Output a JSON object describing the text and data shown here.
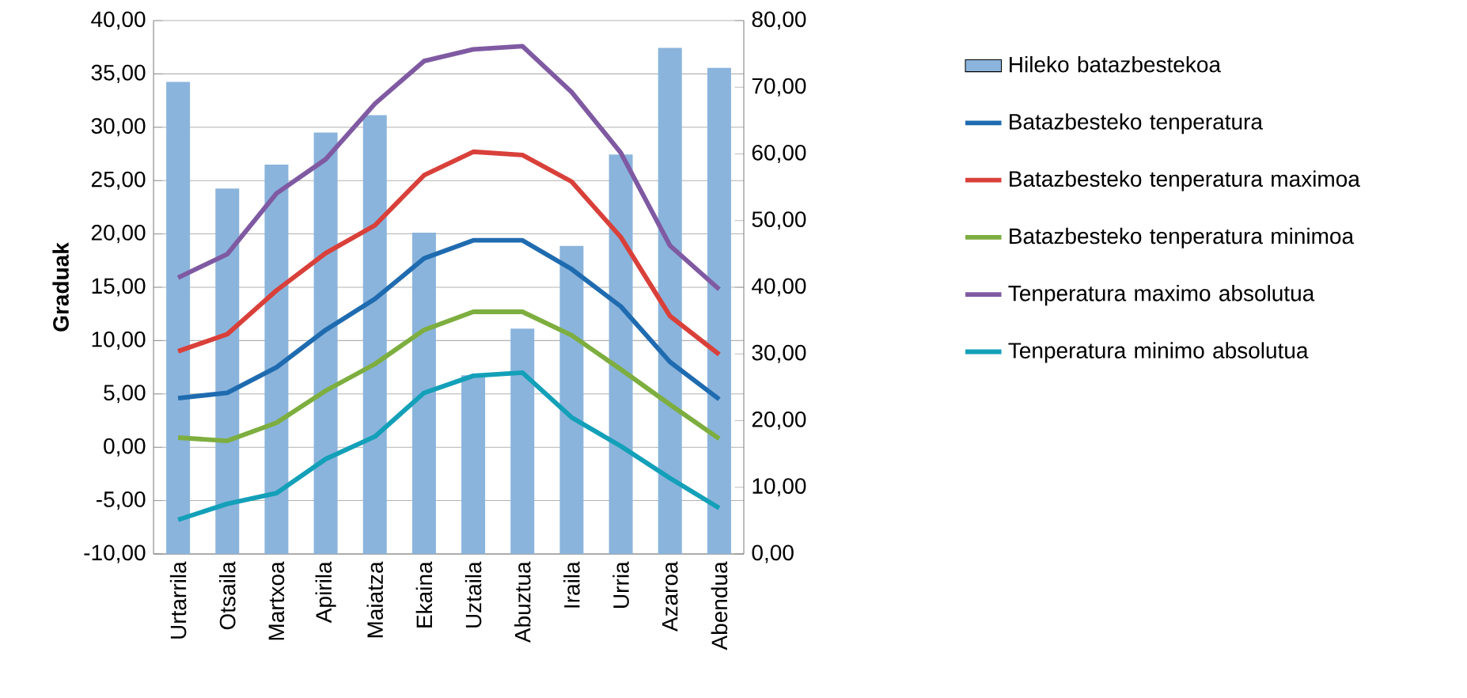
{
  "chart_data": {
    "type": "line",
    "ylabel": "Graduak",
    "categories": [
      "Urtarrila",
      "Otsaila",
      "Martxoa",
      "Apirila",
      "Maiatza",
      "Ekaina",
      "Uztaila",
      "Abuztua",
      "Iraila",
      "Urria",
      "Azaroa",
      "Abendua"
    ],
    "series": [
      {
        "name": "Hileko batazbestekoa",
        "type": "bar",
        "axis": "y2",
        "color": "#8ab4dc",
        "values": [
          70.8,
          54.8,
          58.4,
          63.2,
          65.8,
          48.2,
          26.8,
          33.8,
          46.2,
          59.9,
          75.9,
          72.9
        ]
      },
      {
        "name": "Batazbesteko tenperatura",
        "color": "#1f6bb0",
        "values": [
          4.6,
          5.1,
          7.5,
          11.0,
          13.9,
          17.7,
          19.4,
          19.4,
          16.7,
          13.2,
          8.0,
          4.5
        ]
      },
      {
        "name": "Batazbesteko tenperatura maximoa",
        "color": "#d9403a",
        "values": [
          9.0,
          10.6,
          14.7,
          18.2,
          20.8,
          25.5,
          27.7,
          27.4,
          24.9,
          19.7,
          12.3,
          8.7
        ]
      },
      {
        "name": "Batazbesteko tenperatura minimoa",
        "color": "#7dae3f",
        "values": [
          0.9,
          0.6,
          2.3,
          5.3,
          7.8,
          11.0,
          12.7,
          12.7,
          10.5,
          7.3,
          4.0,
          0.8
        ]
      },
      {
        "name": "Tenperatura maximo absolutua",
        "color": "#7f5aa2",
        "values": [
          15.9,
          18.1,
          23.8,
          27.0,
          32.2,
          36.2,
          37.3,
          37.6,
          33.3,
          27.6,
          18.9,
          14.8
        ]
      },
      {
        "name": "Tenperatura minimo absolutua",
        "color": "#13a0b8",
        "values": [
          -6.8,
          -5.3,
          -4.3,
          -1.1,
          1.0,
          5.1,
          6.7,
          7.0,
          2.8,
          0.1,
          -2.9,
          -5.7
        ]
      }
    ],
    "ylim": [
      -10,
      40
    ],
    "yticks": [
      {
        "value": -10,
        "label": "-10,00"
      },
      {
        "value": -5,
        "label": "-5,00"
      },
      {
        "value": 0,
        "label": "0,00"
      },
      {
        "value": 5,
        "label": "5,00"
      },
      {
        "value": 10,
        "label": "10,00"
      },
      {
        "value": 15,
        "label": "15,00"
      },
      {
        "value": 20,
        "label": "20,00"
      },
      {
        "value": 25,
        "label": "25,00"
      },
      {
        "value": 30,
        "label": "30,00"
      },
      {
        "value": 35,
        "label": "35,00"
      },
      {
        "value": 40,
        "label": "40,00"
      }
    ],
    "y2lim": [
      0,
      80
    ],
    "y2ticks": [
      {
        "value": 0,
        "label": "0,00"
      },
      {
        "value": 10,
        "label": "10,00"
      },
      {
        "value": 20,
        "label": "20,00"
      },
      {
        "value": 30,
        "label": "30,00"
      },
      {
        "value": 40,
        "label": "40,00"
      },
      {
        "value": 50,
        "label": "50,00"
      },
      {
        "value": 60,
        "label": "60,00"
      },
      {
        "value": 70,
        "label": "70,00"
      },
      {
        "value": 80,
        "label": "80,00"
      }
    ],
    "grid": "y",
    "legend": "right",
    "marker": "none",
    "line_style": "solid"
  }
}
